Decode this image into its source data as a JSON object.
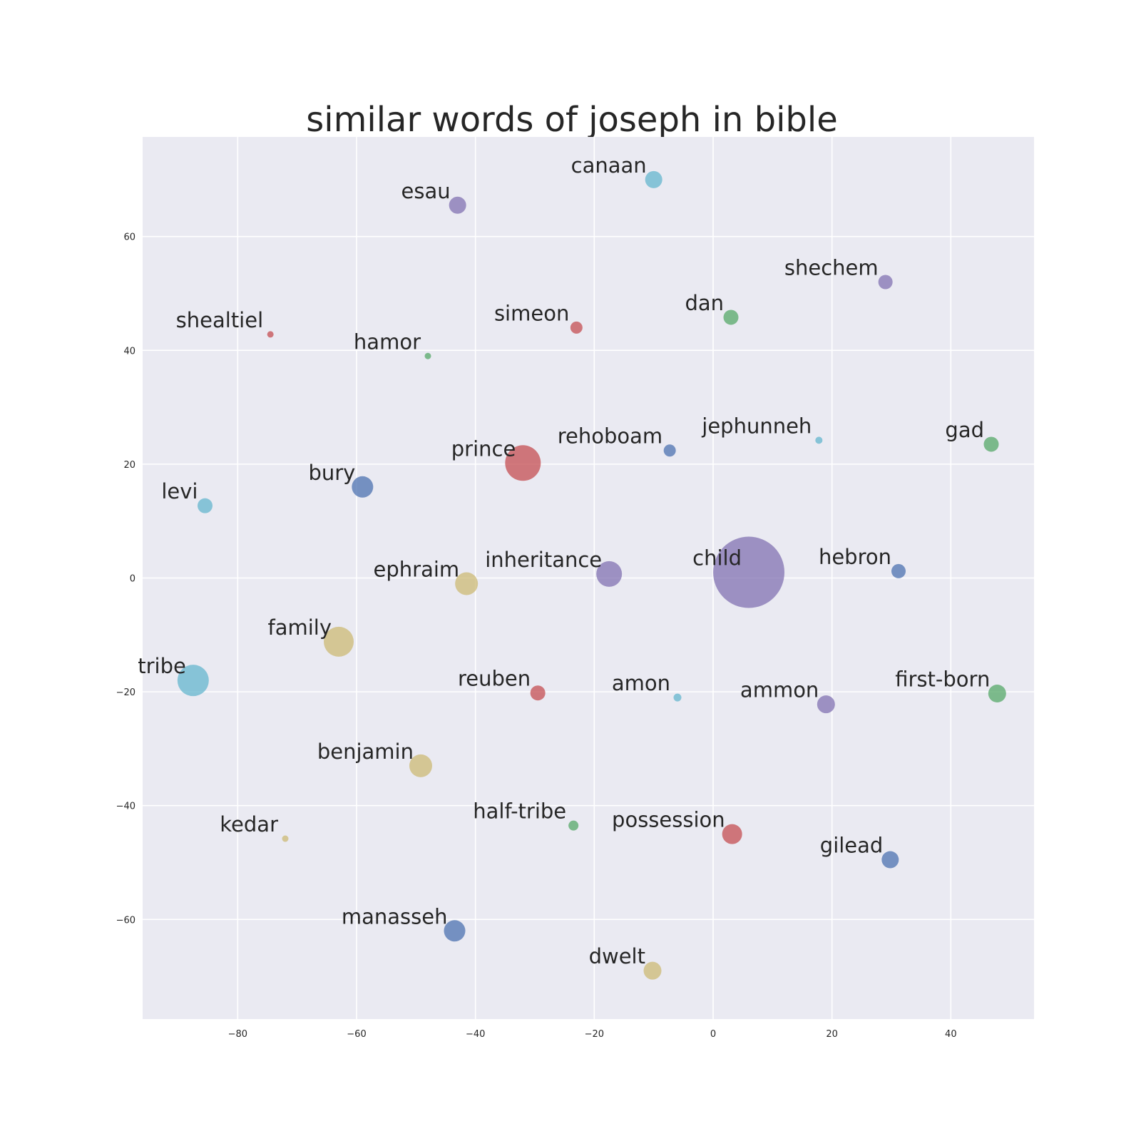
{
  "chart_data": {
    "type": "scatter",
    "title": "similar words of joseph in bible",
    "xlabel": "",
    "ylabel": "",
    "xlim": [
      -96,
      54
    ],
    "ylim": [
      -77.5,
      77.5
    ],
    "xticks": [
      -80,
      -60,
      -40,
      -20,
      0,
      20,
      40
    ],
    "yticks": [
      -60,
      -40,
      -20,
      0,
      20,
      40,
      60
    ],
    "grid": true,
    "background": "#eaeaf2",
    "points": [
      {
        "label": "canaan",
        "x": -10,
        "y": 70,
        "size": 12,
        "color": "#64b5cd"
      },
      {
        "label": "esau",
        "x": -43,
        "y": 65.5,
        "size": 12,
        "color": "#8172b2"
      },
      {
        "label": "shechem",
        "x": 29,
        "y": 52,
        "size": 10,
        "color": "#8172b2"
      },
      {
        "label": "dan",
        "x": 3,
        "y": 45.8,
        "size": 10.5,
        "color": "#55a868"
      },
      {
        "label": "simeon",
        "x": -23,
        "y": 44,
        "size": 8.5,
        "color": "#c44e52"
      },
      {
        "label": "shealtiel",
        "x": -74.5,
        "y": 42.8,
        "size": 4.5,
        "color": "#c44e52"
      },
      {
        "label": "hamor",
        "x": -48,
        "y": 39,
        "size": 4.5,
        "color": "#55a868"
      },
      {
        "label": "jephunneh",
        "x": 17.8,
        "y": 24.2,
        "size": 5,
        "color": "#64b5cd"
      },
      {
        "label": "gad",
        "x": 46.8,
        "y": 23.5,
        "size": 10.5,
        "color": "#55a868"
      },
      {
        "label": "rehoboam",
        "x": -7.3,
        "y": 22.4,
        "size": 8.5,
        "color": "#4c72b0"
      },
      {
        "label": "prince",
        "x": -32,
        "y": 20.2,
        "size": 25,
        "color": "#c44e52"
      },
      {
        "label": "bury",
        "x": -59,
        "y": 16,
        "size": 15,
        "color": "#4c72b0"
      },
      {
        "label": "levi",
        "x": -85.5,
        "y": 12.7,
        "size": 10.5,
        "color": "#64b5cd"
      },
      {
        "label": "child",
        "x": 6,
        "y": 1,
        "size": 50,
        "color": "#8172b2"
      },
      {
        "label": "hebron",
        "x": 31.2,
        "y": 1.2,
        "size": 10,
        "color": "#4c72b0"
      },
      {
        "label": "inheritance",
        "x": -17.5,
        "y": 0.7,
        "size": 18,
        "color": "#8172b2"
      },
      {
        "label": "ephraim",
        "x": -41.5,
        "y": -1,
        "size": 16,
        "color": "#ccb974"
      },
      {
        "label": "family",
        "x": -63,
        "y": -11.2,
        "size": 21,
        "color": "#ccb974"
      },
      {
        "label": "tribe",
        "x": -87.5,
        "y": -18,
        "size": 22,
        "color": "#64b5cd"
      },
      {
        "label": "reuben",
        "x": -29.5,
        "y": -20.2,
        "size": 10.5,
        "color": "#c44e52"
      },
      {
        "label": "amon",
        "x": -6,
        "y": -21,
        "size": 5.5,
        "color": "#64b5cd"
      },
      {
        "label": "ammon",
        "x": 19,
        "y": -22.2,
        "size": 12.5,
        "color": "#8172b2"
      },
      {
        "label": "first-born",
        "x": 47.8,
        "y": -20.3,
        "size": 12.5,
        "color": "#55a868"
      },
      {
        "label": "benjamin",
        "x": -49.2,
        "y": -33,
        "size": 16,
        "color": "#ccb974"
      },
      {
        "label": "half-tribe",
        "x": -23.5,
        "y": -43.5,
        "size": 7,
        "color": "#55a868"
      },
      {
        "label": "possession",
        "x": 3.2,
        "y": -45,
        "size": 14,
        "color": "#c44e52"
      },
      {
        "label": "kedar",
        "x": -72,
        "y": -45.8,
        "size": 4.5,
        "color": "#ccb974"
      },
      {
        "label": "gilead",
        "x": 29.8,
        "y": -49.5,
        "size": 12,
        "color": "#4c72b0"
      },
      {
        "label": "manasseh",
        "x": -43.5,
        "y": -62,
        "size": 15,
        "color": "#4c72b0"
      },
      {
        "label": "dwelt",
        "x": -10.2,
        "y": -69,
        "size": 12.5,
        "color": "#ccb974"
      }
    ]
  }
}
